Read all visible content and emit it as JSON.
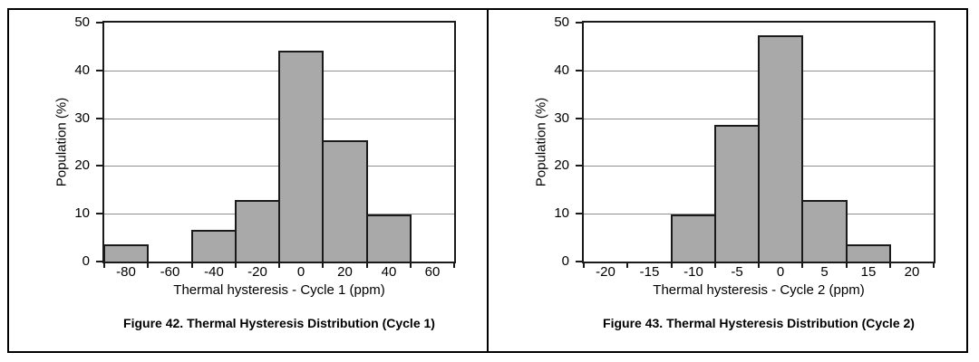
{
  "styles": {
    "background": "#ffffff",
    "frame_color": "#000000",
    "axis_color": "#1a1a1a",
    "grid_color": "#8f8f8f",
    "bar_fill": "#a9a9a9",
    "bar_border": "#1a1a1a",
    "text_color": "#000000"
  },
  "chart_data": [
    {
      "type": "bar",
      "subtype": "histogram",
      "caption": "Figure 42. Thermal Hysteresis Distribution (Cycle 1)",
      "xlabel": "Thermal hysteresis - Cycle 1 (ppm)",
      "ylabel": "Population (%)",
      "ylim": [
        0,
        50
      ],
      "yticks": [
        0,
        10,
        20,
        30,
        40,
        50
      ],
      "grid": true,
      "legend": false,
      "categories": [
        "-80",
        "-60",
        "-40",
        "-20",
        "0",
        "20",
        "40",
        "60"
      ],
      "values": [
        3.125,
        0,
        6.25,
        12.5,
        43.75,
        25,
        9.375,
        0
      ]
    },
    {
      "type": "bar",
      "subtype": "histogram",
      "caption": "Figure 43. Thermal Hysteresis Distribution (Cycle 2)",
      "xlabel": "Thermal hysteresis - Cycle 2 (ppm)",
      "ylabel": "Population (%)",
      "ylim": [
        0,
        50
      ],
      "yticks": [
        0,
        10,
        20,
        30,
        40,
        50
      ],
      "grid": true,
      "legend": false,
      "categories": [
        "-20",
        "-15",
        "-10",
        "-5",
        "0",
        "5",
        "15",
        "20"
      ],
      "values": [
        0,
        0,
        9.375,
        28.125,
        46.875,
        12.5,
        3.125,
        0
      ]
    }
  ]
}
